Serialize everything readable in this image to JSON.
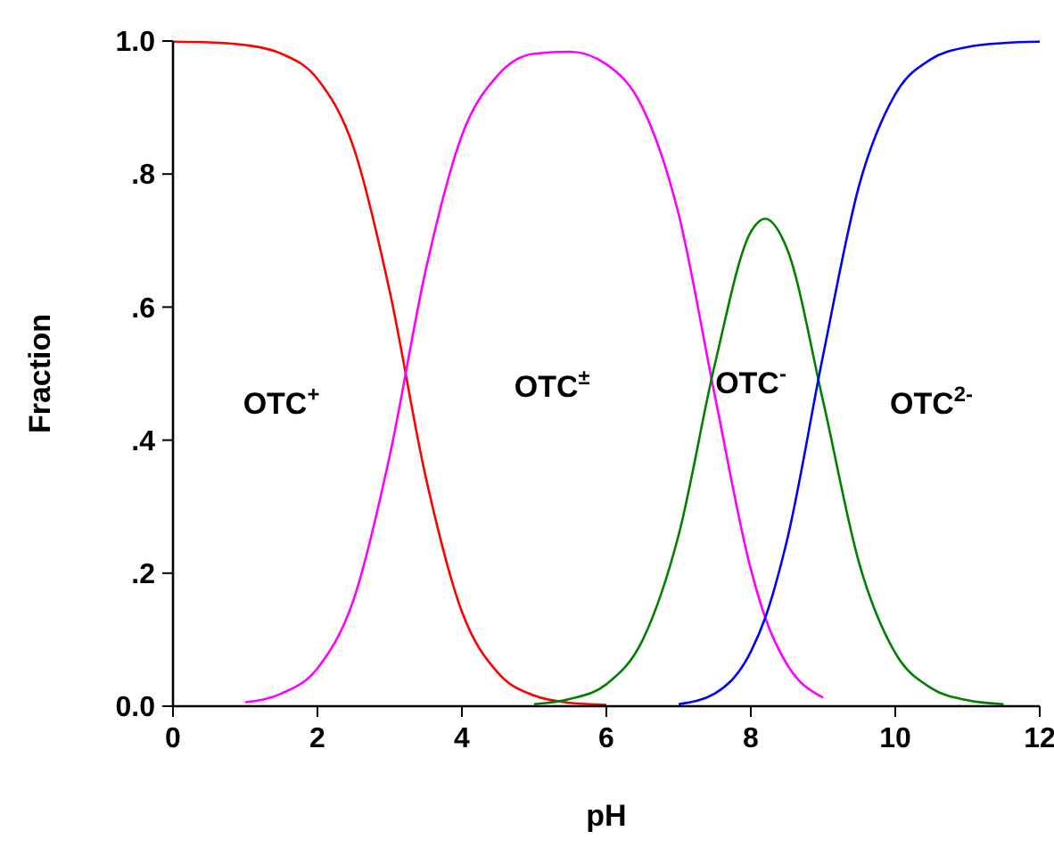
{
  "chart_data": {
    "type": "line",
    "xlabel": "pH",
    "ylabel": "Fraction",
    "x": [
      0,
      0.5,
      1,
      1.5,
      2,
      2.5,
      3,
      3.5,
      4,
      4.5,
      5,
      5.5,
      6,
      6.5,
      7,
      7.5,
      8,
      8.2,
      8.5,
      9,
      9.5,
      10,
      10.5,
      11,
      11.5,
      12
    ],
    "series": [
      {
        "color": "#ff0000",
        "values": [
          0.999,
          0.998,
          0.994,
          0.981,
          0.943,
          0.84,
          0.624,
          0.344,
          0.142,
          0.05,
          0.016,
          0.005,
          0.002,
          null,
          null,
          null,
          null,
          null,
          null,
          null,
          null,
          null,
          null,
          null,
          null,
          null
        ]
      },
      {
        "color": "#ff00ff",
        "values": [
          null,
          null,
          0.006,
          0.019,
          0.057,
          0.16,
          0.376,
          0.656,
          0.858,
          0.949,
          0.981,
          0.984,
          0.965,
          0.9,
          0.74,
          0.468,
          0.206,
          0.133,
          0.063,
          0.013,
          null,
          null,
          null,
          null,
          null,
          null
        ]
      },
      {
        "color": "#008000",
        "values": [
          null,
          null,
          null,
          null,
          null,
          null,
          null,
          null,
          null,
          null,
          0.003,
          0.011,
          0.033,
          0.099,
          0.257,
          0.513,
          0.713,
          0.733,
          0.688,
          0.459,
          0.215,
          0.08,
          0.027,
          0.009,
          0.003,
          null
        ]
      },
      {
        "color": "#0000ff",
        "values": [
          null,
          null,
          null,
          null,
          null,
          null,
          null,
          null,
          null,
          null,
          null,
          null,
          null,
          null,
          0.003,
          0.019,
          0.082,
          0.133,
          0.249,
          0.527,
          0.783,
          0.92,
          0.973,
          0.991,
          0.997,
          0.999
        ]
      }
    ],
    "xlim": [
      0,
      12
    ],
    "xticks": [
      0,
      2,
      4,
      6,
      8,
      10,
      12
    ],
    "ylim": [
      0,
      1
    ],
    "yticks": [
      {
        "value": 0,
        "label": "0.0"
      },
      {
        "value": 0.2,
        "label": ".2"
      },
      {
        "value": 0.4,
        "label": ".4"
      },
      {
        "value": 0.6,
        "label": ".6"
      },
      {
        "value": 0.8,
        "label": ".8"
      },
      {
        "value": 1,
        "label": "1.0"
      }
    ],
    "annotations": [
      "OTC$^{+}$",
      "OTC$^{±}$",
      "OTC$^{-}$",
      "OTC$^{2-}$"
    ],
    "grid": false,
    "marker": "none",
    "line_style": "solid"
  }
}
